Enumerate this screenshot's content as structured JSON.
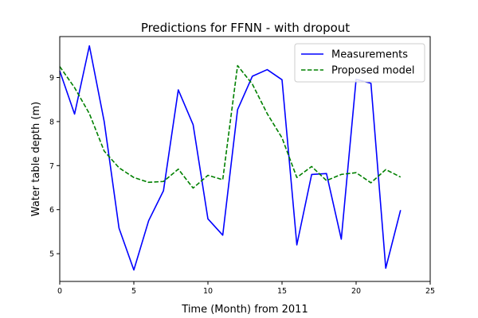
{
  "chart_data": {
    "type": "line",
    "title": "Predictions for FFNN - with dropout",
    "xlabel": "Time (Month) from 2011",
    "ylabel": "Water table depth (m)",
    "xlim": [
      0,
      25
    ],
    "ylim": [
      4.37,
      9.93
    ],
    "xticks": [
      0,
      5,
      10,
      15,
      20,
      25
    ],
    "yticks": [
      5,
      6,
      7,
      8,
      9
    ],
    "grid": false,
    "legend_position": "top-right",
    "x": [
      0,
      1,
      2,
      3,
      4,
      5,
      6,
      7,
      8,
      9,
      10,
      11,
      12,
      13,
      14,
      15,
      16,
      17,
      18,
      19,
      20,
      21,
      22,
      23
    ],
    "series": [
      {
        "name": "Measurements",
        "color": "#0000ff",
        "style": "solid",
        "values": [
          9.15,
          8.17,
          9.72,
          8.0,
          5.58,
          4.63,
          5.75,
          6.43,
          8.72,
          7.93,
          5.79,
          5.42,
          8.27,
          9.03,
          9.18,
          8.95,
          5.2,
          6.8,
          6.82,
          5.33,
          8.96,
          8.87,
          4.67,
          5.99
        ]
      },
      {
        "name": "Proposed model",
        "color": "#008000",
        "style": "dashed",
        "values": [
          9.25,
          8.77,
          8.18,
          7.33,
          6.95,
          6.73,
          6.62,
          6.64,
          6.92,
          6.49,
          6.78,
          6.68,
          9.27,
          8.85,
          8.18,
          7.63,
          6.73,
          6.98,
          6.66,
          6.8,
          6.84,
          6.61,
          6.91,
          6.74
        ]
      }
    ]
  }
}
